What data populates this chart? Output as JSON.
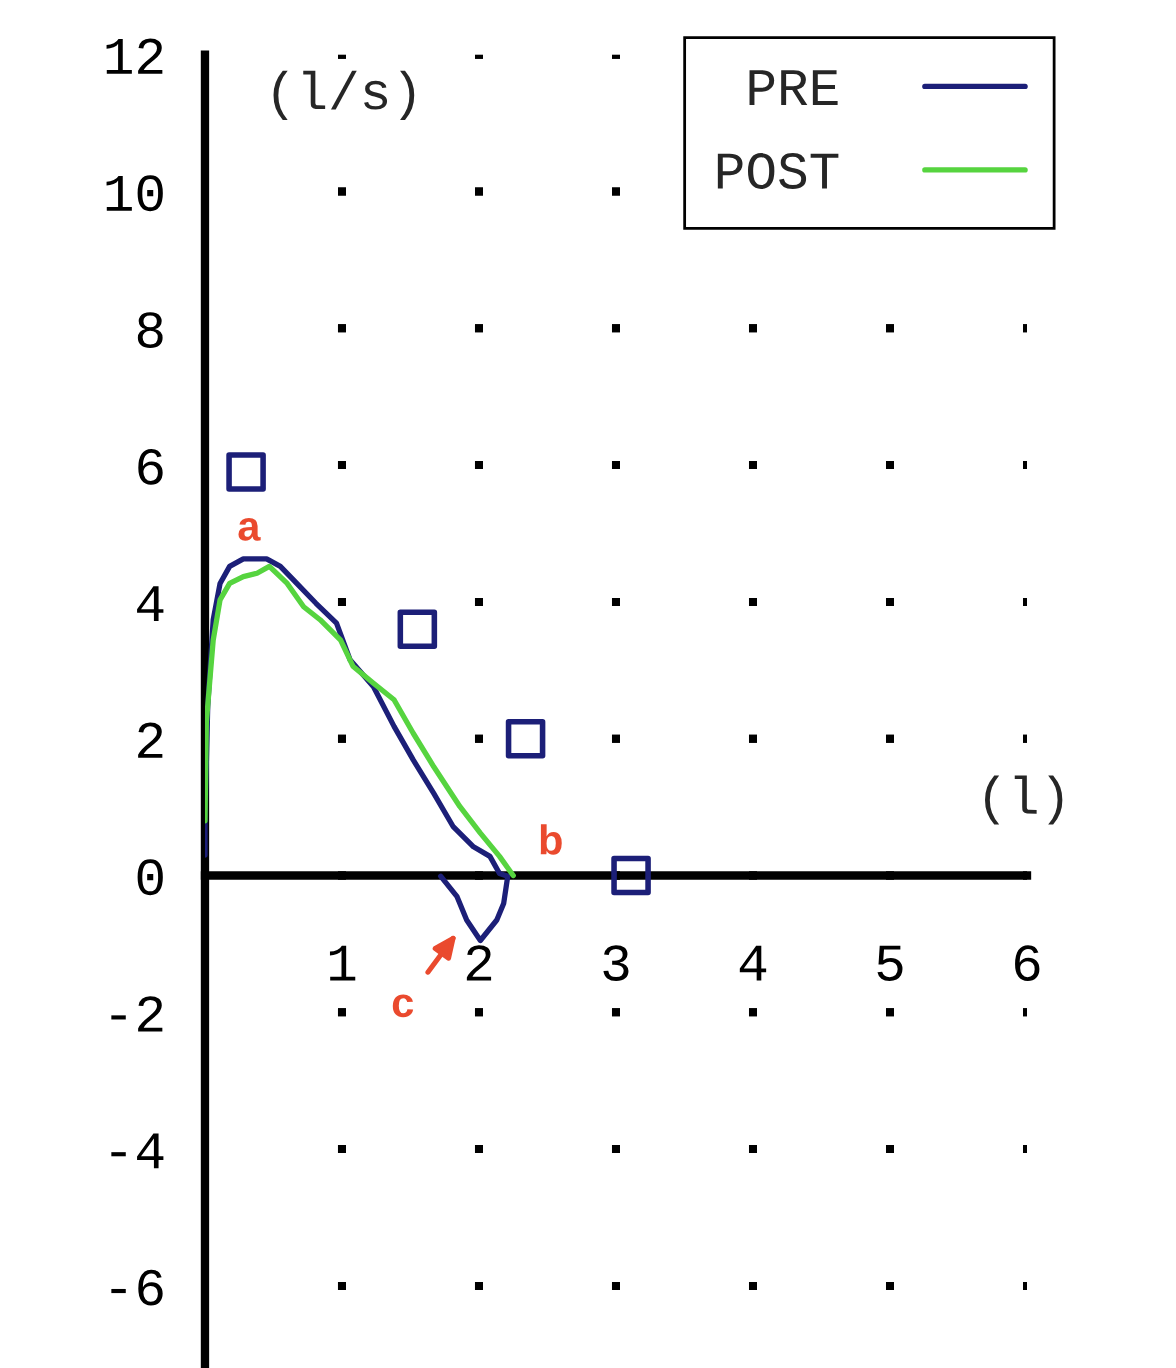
{
  "chart_data": {
    "type": "line",
    "xlabel": "(l)",
    "ylabel": "(l/s)",
    "xlim": [
      0,
      6
    ],
    "ylim": [
      -7.2,
      12
    ],
    "xticks": [
      1,
      2,
      3,
      4,
      5,
      6
    ],
    "yticks": [
      -6,
      -4,
      -2,
      0,
      2,
      4,
      6,
      8,
      10,
      12
    ],
    "grid": true,
    "legend": "top right",
    "series": [
      {
        "name": "PRE",
        "color": "#1c1f78",
        "x": [
          0,
          0,
          0.02,
          0.06,
          0.11,
          0.18,
          0.28,
          0.45,
          0.55,
          0.67,
          0.81,
          0.96,
          1.06,
          1.23,
          1.38,
          1.52,
          1.67,
          1.81,
          1.96,
          2.08,
          2.15,
          2.21,
          2.18,
          2.13,
          2.01,
          1.91,
          1.84,
          1.72
        ],
        "values": [
          0.3,
          0.81,
          2.47,
          3.74,
          4.27,
          4.52,
          4.63,
          4.63,
          4.52,
          4.27,
          3.98,
          3.69,
          3.15,
          2.76,
          2.18,
          1.69,
          1.2,
          0.72,
          0.42,
          0.28,
          0.03,
          -0.01,
          -0.41,
          -0.65,
          -0.95,
          -0.65,
          -0.31,
          -0.01
        ]
      },
      {
        "name": "POST",
        "color": "#56d43f",
        "x": [
          0,
          0.01,
          0.06,
          0.11,
          0.18,
          0.28,
          0.38,
          0.47,
          0.6,
          0.72,
          0.84,
          0.99,
          1.08,
          1.23,
          1.38,
          1.52,
          1.67,
          1.86,
          2.01,
          2.15,
          2.25
        ],
        "values": [
          0.8,
          2.24,
          3.44,
          4.03,
          4.27,
          4.37,
          4.42,
          4.52,
          4.27,
          3.93,
          3.74,
          3.44,
          3.06,
          2.81,
          2.57,
          2.08,
          1.59,
          1.01,
          0.62,
          0.28,
          0
        ]
      },
      {
        "type": "scatter",
        "marker": "square",
        "color": "#1c1f78",
        "x": [
          0.3,
          1.55,
          2.34,
          3.11
        ],
        "values": [
          5.9,
          3.6,
          2.0,
          0
        ]
      }
    ],
    "annotations": [
      {
        "text": "a",
        "x": 0.32,
        "y": 4.63
      },
      {
        "text": "b",
        "x": 2.25,
        "y": 0
      },
      {
        "text": "c",
        "x": 1.91,
        "y": -0.65
      }
    ]
  }
}
